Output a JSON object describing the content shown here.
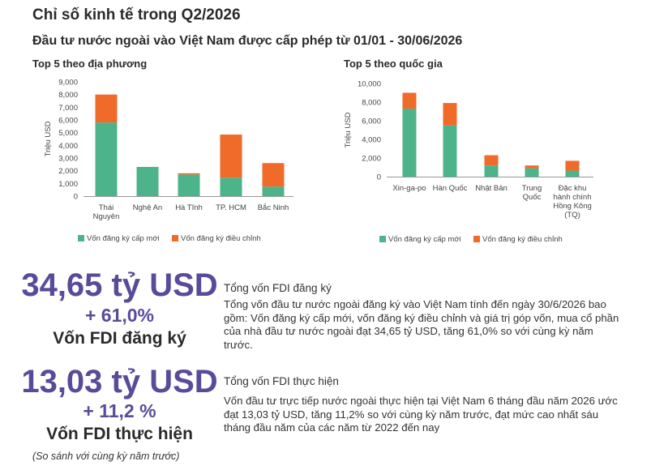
{
  "page": {
    "title": "Chỉ số kinh tế trong Q2/2026",
    "subtitle": "Đầu tư nước ngoài vào Việt Nam được cấp phép từ 01/01 - 30/06/2026"
  },
  "colors": {
    "new": "#4db38a",
    "adjusted": "#f06a2a",
    "accent": "#5a4a9a"
  },
  "chart_data": [
    {
      "type": "bar",
      "stacked": true,
      "title": "Top 5 theo địa phương",
      "ylabel": "Triệu USD",
      "ylim": [
        0,
        9000
      ],
      "yticks": [
        "0",
        "1,000",
        "2,000",
        "3,000",
        "4,000",
        "5,000",
        "6,000",
        "7,000",
        "8,000",
        "9,000"
      ],
      "categories": [
        [
          "Thái",
          "Nguyên"
        ],
        [
          "Nghệ An"
        ],
        [
          "Hà Tĩnh"
        ],
        [
          "TP. HCM"
        ],
        [
          "Bắc Ninh"
        ]
      ],
      "series": [
        {
          "name": "Vốn đăng ký cấp mới",
          "color": "#4db38a",
          "values": [
            5800,
            2300,
            1700,
            1450,
            750
          ]
        },
        {
          "name": "Vốn đăng ký điều chỉnh",
          "color": "#f06a2a",
          "values": [
            2200,
            0,
            100,
            3400,
            1850
          ]
        }
      ],
      "legend": "bottom"
    },
    {
      "type": "bar",
      "stacked": true,
      "title": "Top 5 theo quốc gia",
      "ylabel": "Triệu USD",
      "ylim": [
        0,
        10000
      ],
      "yticks": [
        "0",
        "2,000",
        "4,000",
        "6,000",
        "8,000",
        "10,000"
      ],
      "categories": [
        [
          "Xin-ga-po"
        ],
        [
          "Hàn Quốc"
        ],
        [
          "Nhật Bản"
        ],
        [
          "Trung",
          "Quốc"
        ],
        [
          "Đặc khu",
          "hành chính",
          "Hồng Kông",
          "(TQ)"
        ]
      ],
      "series": [
        {
          "name": "Vốn đăng ký cấp mới",
          "color": "#4db38a",
          "values": [
            7300,
            5500,
            1200,
            900,
            650
          ]
        },
        {
          "name": "Vốn đăng ký điều chỉnh",
          "color": "#f06a2a",
          "values": [
            1700,
            2400,
            1100,
            300,
            1050
          ]
        }
      ],
      "legend": "bottom"
    }
  ],
  "stats": [
    {
      "value": "34,65 tỷ USD",
      "change": "+ 61,0%",
      "label": "Vốn FDI đăng ký",
      "heading": "Tổng vốn FDI đăng ký",
      "body": "Tổng vốn đầu tư nước ngoài đăng ký vào Việt Nam  tính đến ngày 30/6/2026 bao gồm: Vốn đăng ký cấp mới, vốn đăng ký điều chỉnh và giá trị góp vốn, mua cổ phần của nhà đầu tư nước ngoài đạt 34,65 tỷ USD, tăng 61,0% so với cùng kỳ năm trước."
    },
    {
      "value": "13,03 tỷ USD",
      "change": "+ 11,2 %",
      "label": "Vốn FDI thực hiện",
      "heading": "Tổng vốn FDI thực hiện",
      "body": "Vốn đầu tư trực tiếp nước ngoài thực hiện tại Việt Nam 6 tháng đầu năm 2026 ước đạt 13,03 tỷ USD, tăng 11,2% so với cùng kỳ năm trước, đạt mức cao nhất sáu tháng đầu năm của các năm từ 2022 đến nay"
    }
  ],
  "note": "(So sánh với cùng kỳ năm trước)"
}
